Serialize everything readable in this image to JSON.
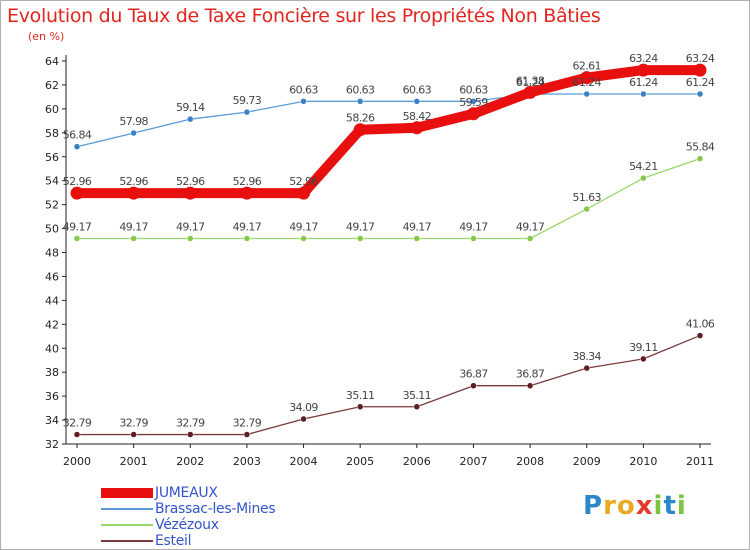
{
  "title": "Evolution du Taux de Taxe Foncière sur les Propriétés Non Bâties",
  "unit_label": "(en %)",
  "logo": {
    "letters": [
      {
        "ch": "P",
        "color": "#2a88c8"
      },
      {
        "ch": "r",
        "color": "#e8aa22"
      },
      {
        "ch": "o",
        "color": "#e8aa22"
      },
      {
        "ch": "x",
        "color": "#e03b2b"
      },
      {
        "ch": "i",
        "color": "#7cc243"
      },
      {
        "ch": "t",
        "color": "#2a88c8"
      },
      {
        "ch": "i",
        "color": "#7cc243"
      }
    ]
  },
  "chart_data": {
    "type": "line",
    "title": "Evolution du Taux de Taxe Foncière sur les Propriétés Non Bâties",
    "ylabel": "(en %)",
    "xlabel": "",
    "ylim": [
      32,
      64
    ],
    "y_ticks": [
      32,
      34,
      36,
      38,
      40,
      42,
      44,
      46,
      48,
      50,
      52,
      54,
      56,
      58,
      60,
      62,
      64
    ],
    "categories": [
      "2000",
      "2001",
      "2002",
      "2003",
      "2004",
      "2005",
      "2006",
      "2007",
      "2008",
      "2009",
      "2010",
      "2011"
    ],
    "grid": false,
    "legend_position": "bottom-left",
    "series": [
      {
        "name": "JUMEAUX",
        "color": "#e8100e",
        "emphasis": true,
        "values": [
          52.96,
          52.96,
          52.96,
          52.96,
          52.96,
          58.26,
          58.42,
          59.59,
          61.38,
          62.61,
          63.24,
          63.24
        ],
        "labels": [
          "52.96",
          "52.96",
          "52.96",
          "52.96",
          "52.96",
          "58.26",
          "58.42",
          "59.59",
          "61.38",
          "62.61",
          "63.24",
          "63.24"
        ]
      },
      {
        "name": "Brassac-les-Mines",
        "color": "#5a9bd5",
        "point_color": "#3a82c8",
        "emphasis": false,
        "values": [
          56.84,
          57.98,
          59.14,
          59.73,
          60.63,
          60.63,
          60.63,
          60.63,
          61.24,
          61.24,
          61.24,
          61.24
        ],
        "labels": [
          "56.84",
          "57.98",
          "59.14",
          "59.73",
          "60.63",
          "60.63",
          "60.63",
          "60.63",
          "61.24",
          "61.24",
          "61.24",
          "61.24"
        ]
      },
      {
        "name": "Vézézoux",
        "color": "#9ad66a",
        "point_color": "#86c94a",
        "emphasis": false,
        "values": [
          49.17,
          49.17,
          49.17,
          49.17,
          49.17,
          49.17,
          49.17,
          49.17,
          49.17,
          51.63,
          54.21,
          55.84
        ],
        "labels": [
          "49.17",
          "49.17",
          "49.17",
          "49.17",
          "49.17",
          "49.17",
          "49.17",
          "49.17",
          "49.17",
          "51.63",
          "54.21",
          "55.84"
        ]
      },
      {
        "name": "Esteil",
        "color": "#7a3a3e",
        "point_color": "#5e1e24",
        "emphasis": false,
        "values": [
          32.79,
          32.79,
          32.79,
          32.79,
          34.09,
          35.11,
          35.11,
          36.87,
          36.87,
          38.34,
          39.11,
          41.06
        ],
        "labels": [
          "32.79",
          "32.79",
          "32.79",
          "32.79",
          "34.09",
          "35.11",
          "35.11",
          "36.87",
          "36.87",
          "38.34",
          "39.11",
          "41.06"
        ]
      }
    ]
  }
}
